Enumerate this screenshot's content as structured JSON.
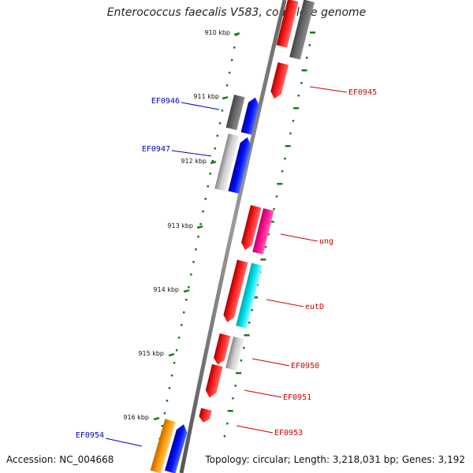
{
  "title": "Enterococcus faecalis V583, complete genome",
  "footer": {
    "accession": "Accession: NC_004668",
    "summary": "Topology: circular; Length: 3,218,031 bp; Genes: 3,192"
  },
  "colors": {
    "backbone": "#777777",
    "tick": "#1a7a1a",
    "forward_label": "#0000cc",
    "reverse_label": "#cc0000",
    "red": "#ff0000",
    "blue": "#0000ff",
    "gray_dark": "#666666",
    "gray_light": "#c8c8c8",
    "magenta": "#ff1493",
    "cyan": "#00e5ee",
    "orange": "#ff9900"
  },
  "ticks": [
    "910 kbp",
    "911 kbp",
    "912 kbp",
    "913 kbp",
    "914 kbp",
    "915 kbp",
    "916 kbp"
  ],
  "genes": [
    {
      "label": "EF0945",
      "strand": "reverse"
    },
    {
      "label": "EF0946",
      "strand": "forward"
    },
    {
      "label": "EF0947",
      "strand": "forward"
    },
    {
      "label": "ung",
      "strand": "reverse"
    },
    {
      "label": "eutD",
      "strand": "reverse"
    },
    {
      "label": "EF0950",
      "strand": "reverse"
    },
    {
      "label": "EF0951",
      "strand": "reverse"
    },
    {
      "label": "EF0953",
      "strand": "reverse"
    },
    {
      "label": "EF0954",
      "strand": "forward"
    }
  ]
}
